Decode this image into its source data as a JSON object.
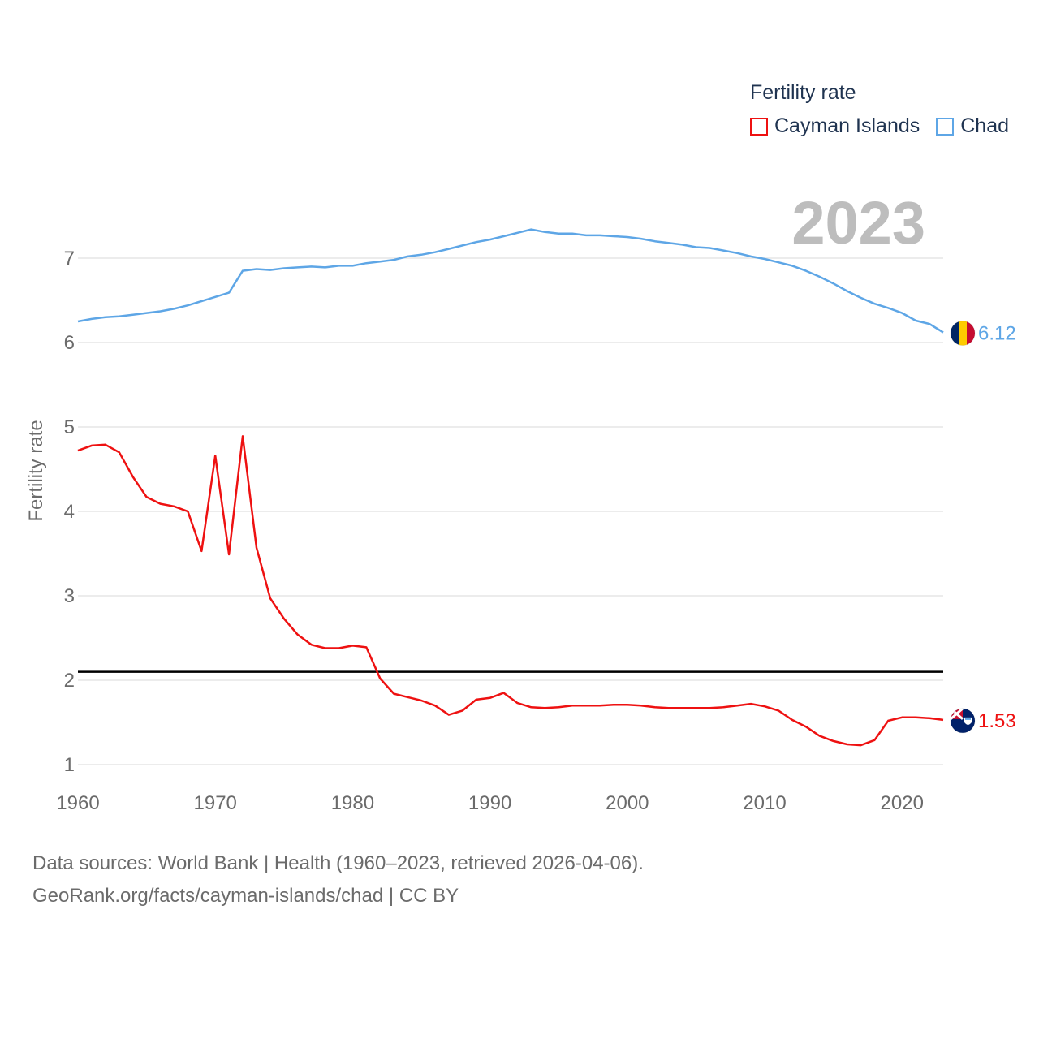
{
  "chart_data": {
    "type": "line",
    "title": "Fertility rate",
    "ylabel": "Fertility rate",
    "xlabel": "",
    "current_year": "2023",
    "xlim": [
      1960,
      2023
    ],
    "ylim": [
      0.75,
      7.75
    ],
    "x_ticks": [
      1960,
      1970,
      1980,
      1990,
      2000,
      2010,
      2020
    ],
    "y_ticks": [
      1,
      2,
      3,
      4,
      5,
      6,
      7
    ],
    "reference_line": {
      "value": 2.1,
      "color": "#000000"
    },
    "years": [
      1960,
      1961,
      1962,
      1963,
      1964,
      1965,
      1966,
      1967,
      1968,
      1969,
      1970,
      1971,
      1972,
      1973,
      1974,
      1975,
      1976,
      1977,
      1978,
      1979,
      1980,
      1981,
      1982,
      1983,
      1984,
      1985,
      1986,
      1987,
      1988,
      1989,
      1990,
      1991,
      1992,
      1993,
      1994,
      1995,
      1996,
      1997,
      1998,
      1999,
      2000,
      2001,
      2002,
      2003,
      2004,
      2005,
      2006,
      2007,
      2008,
      2009,
      2010,
      2011,
      2012,
      2013,
      2014,
      2015,
      2016,
      2017,
      2018,
      2019,
      2020,
      2021,
      2022,
      2023
    ],
    "series": [
      {
        "name": "Cayman Islands",
        "color": "#ee1111",
        "end_label": "1.53",
        "flag": "cayman-islands",
        "values": [
          4.72,
          4.78,
          4.79,
          4.7,
          4.41,
          4.17,
          4.09,
          4.06,
          4.0,
          3.53,
          4.66,
          3.49,
          4.89,
          3.57,
          2.97,
          2.73,
          2.54,
          2.42,
          2.38,
          2.38,
          2.41,
          2.39,
          2.02,
          1.84,
          1.8,
          1.76,
          1.7,
          1.59,
          1.64,
          1.77,
          1.79,
          1.85,
          1.73,
          1.68,
          1.67,
          1.68,
          1.7,
          1.7,
          1.7,
          1.71,
          1.71,
          1.7,
          1.68,
          1.67,
          1.67,
          1.67,
          1.67,
          1.68,
          1.7,
          1.72,
          1.69,
          1.64,
          1.53,
          1.45,
          1.34,
          1.28,
          1.24,
          1.23,
          1.29,
          1.52,
          1.56,
          1.56,
          1.55,
          1.53
        ]
      },
      {
        "name": "Chad",
        "color": "#5ea6e6",
        "end_label": "6.12",
        "flag": "chad",
        "values": [
          6.25,
          6.28,
          6.3,
          6.31,
          6.33,
          6.35,
          6.37,
          6.4,
          6.44,
          6.49,
          6.54,
          6.59,
          6.85,
          6.87,
          6.86,
          6.88,
          6.89,
          6.9,
          6.89,
          6.91,
          6.91,
          6.94,
          6.96,
          6.98,
          7.02,
          7.04,
          7.07,
          7.11,
          7.15,
          7.19,
          7.22,
          7.26,
          7.3,
          7.34,
          7.31,
          7.29,
          7.29,
          7.27,
          7.27,
          7.26,
          7.25,
          7.23,
          7.2,
          7.18,
          7.16,
          7.13,
          7.12,
          7.09,
          7.06,
          7.02,
          6.99,
          6.95,
          6.91,
          6.85,
          6.78,
          6.7,
          6.61,
          6.53,
          6.46,
          6.41,
          6.35,
          6.26,
          6.22,
          6.12
        ]
      }
    ]
  },
  "legend": {
    "title": "Fertility rate",
    "items": [
      {
        "label": "Cayman Islands",
        "color": "#ee1111"
      },
      {
        "label": "Chad",
        "color": "#5ea6e6"
      }
    ]
  },
  "source": {
    "line1": "Data sources: World Bank | Health (1960–2023, retrieved 2026-04-06).",
    "line2": "GeoRank.org/facts/cayman-islands/chad | CC BY"
  }
}
